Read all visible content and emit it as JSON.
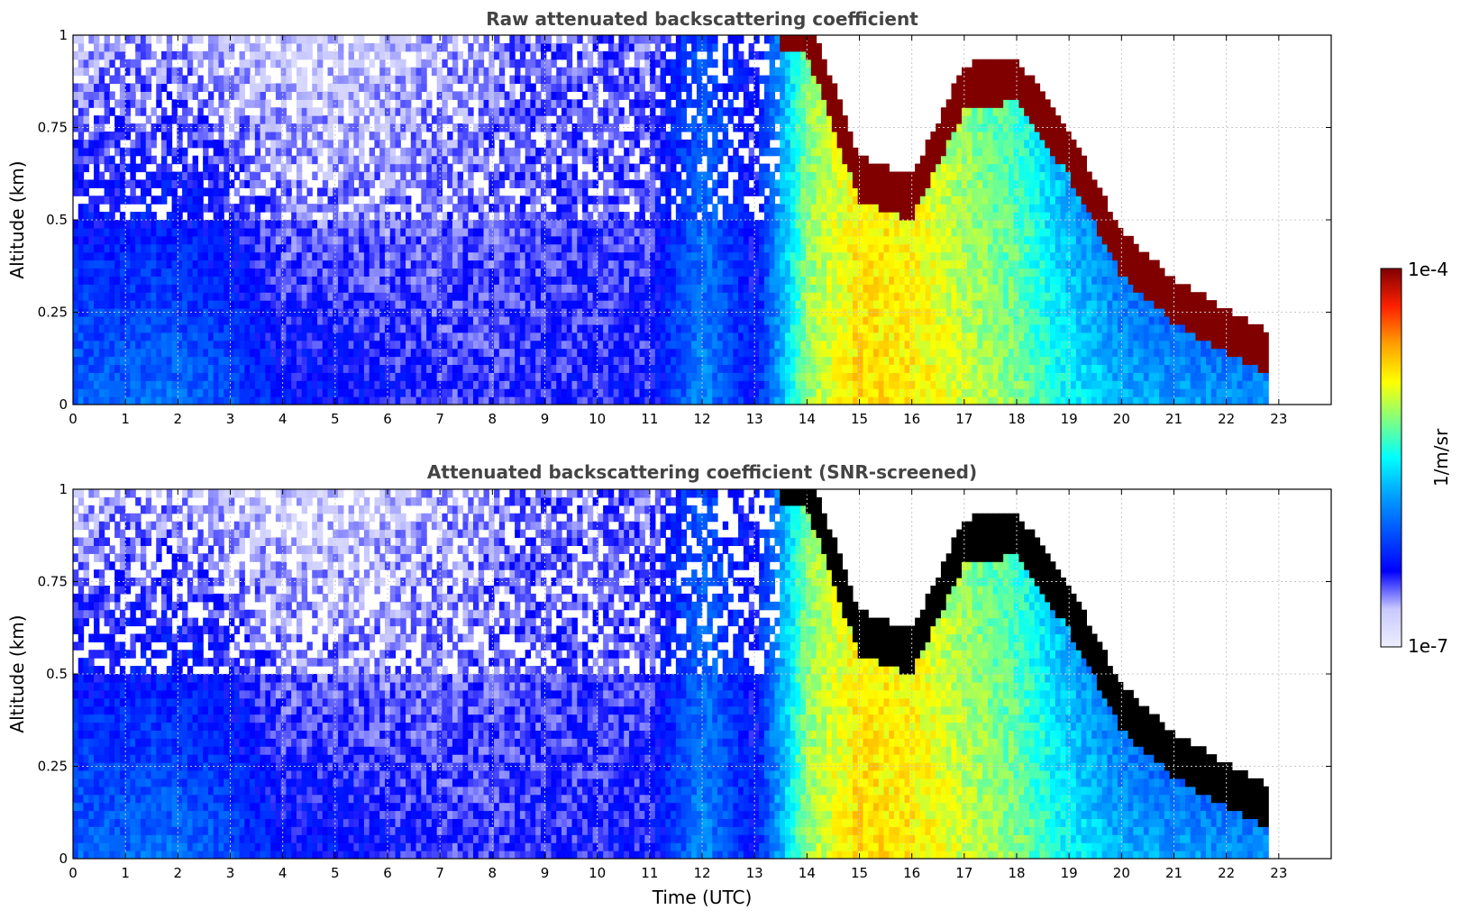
{
  "chart_data": [
    {
      "type": "heatmap",
      "title": "Raw attenuated backscattering coefficient",
      "xlabel": "",
      "ylabel": "Altitude (km)",
      "xlim": [
        0,
        24
      ],
      "ylim": [
        0,
        1
      ],
      "x_ticks": [
        "0",
        "1",
        "2",
        "3",
        "4",
        "5",
        "6",
        "7",
        "8",
        "9",
        "10",
        "11",
        "12",
        "13",
        "14",
        "15",
        "16",
        "17",
        "18",
        "19",
        "20",
        "21",
        "22",
        "23"
      ],
      "y_ticks": [
        "0",
        "0.25",
        "0.5",
        "0.75",
        "1"
      ],
      "grid": true,
      "screened": false,
      "data_end_time": 22.8,
      "hour_levels": [
        {
          "t": 0,
          "surface": 0.33,
          "top": 0.1,
          "cloud_base": null
        },
        {
          "t": 1,
          "surface": 0.33,
          "top": 0.12,
          "cloud_base": null
        },
        {
          "t": 2,
          "surface": 0.34,
          "top": 0.12,
          "cloud_base": null
        },
        {
          "t": 3,
          "surface": 0.3,
          "top": 0.1,
          "cloud_base": null
        },
        {
          "t": 4,
          "surface": 0.22,
          "top": 0.08,
          "cloud_base": null
        },
        {
          "t": 5,
          "surface": 0.22,
          "top": 0.08,
          "cloud_base": null
        },
        {
          "t": 6,
          "surface": 0.2,
          "top": 0.09,
          "cloud_base": null
        },
        {
          "t": 7,
          "surface": 0.18,
          "top": 0.12,
          "cloud_base": null
        },
        {
          "t": 8,
          "surface": 0.18,
          "top": 0.14,
          "cloud_base": null
        },
        {
          "t": 9,
          "surface": 0.18,
          "top": 0.16,
          "cloud_base": null
        },
        {
          "t": 10,
          "surface": 0.19,
          "top": 0.16,
          "cloud_base": null
        },
        {
          "t": 11,
          "surface": 0.19,
          "top": 0.15,
          "cloud_base": null
        },
        {
          "t": 12,
          "surface": 0.38,
          "top": 0.3,
          "cloud_base": null
        },
        {
          "t": 13,
          "surface": 0.22,
          "top": 0.18,
          "cloud_base": null
        },
        {
          "t": 14,
          "surface": 0.62,
          "top": 0.6,
          "cloud_base": 0.95
        },
        {
          "t": 15,
          "surface": 0.74,
          "top": 0.7,
          "cloud_base": 0.55
        },
        {
          "t": 16,
          "surface": 0.72,
          "top": 0.68,
          "cloud_base": 0.5
        },
        {
          "t": 17,
          "surface": 0.66,
          "top": 0.6,
          "cloud_base": 0.8
        },
        {
          "t": 18,
          "surface": 0.6,
          "top": 0.52,
          "cloud_base": 0.82
        },
        {
          "t": 19,
          "surface": 0.5,
          "top": 0.35,
          "cloud_base": 0.62
        },
        {
          "t": 20,
          "surface": 0.42,
          "top": 0.2,
          "cloud_base": 0.35
        },
        {
          "t": 21,
          "surface": 0.4,
          "top": 0.1,
          "cloud_base": 0.22
        },
        {
          "t": 22,
          "surface": 0.38,
          "top": 0.08,
          "cloud_base": 0.14
        },
        {
          "t": 22.8,
          "surface": 0.38,
          "top": 0.08,
          "cloud_base": 0.08
        }
      ]
    },
    {
      "type": "heatmap",
      "title": "Attenuated backscattering coefficient (SNR-screened)",
      "xlabel": "Time (UTC)",
      "ylabel": "Altitude (km)",
      "xlim": [
        0,
        24
      ],
      "ylim": [
        0,
        1
      ],
      "x_ticks": [
        "0",
        "1",
        "2",
        "3",
        "4",
        "5",
        "6",
        "7",
        "8",
        "9",
        "10",
        "11",
        "12",
        "13",
        "14",
        "15",
        "16",
        "17",
        "18",
        "19",
        "20",
        "21",
        "22",
        "23"
      ],
      "y_ticks": [
        "0",
        "0.25",
        "0.5",
        "0.75",
        "1"
      ],
      "grid": true,
      "screened": true,
      "data_end_time": 22.8,
      "saturated_color": "#000000"
    }
  ],
  "colorbar": {
    "label": "1/m/sr",
    "max_label": "1e-4",
    "min_label": "1e-7",
    "scale": "log",
    "range": [
      1e-07,
      0.0001
    ],
    "colors": [
      "#eeeeff",
      "#c8c8ff",
      "#0000ff",
      "#0050ff",
      "#00a0ff",
      "#00ffff",
      "#80ff80",
      "#ffff00",
      "#ffa000",
      "#ff2000",
      "#800000"
    ]
  }
}
